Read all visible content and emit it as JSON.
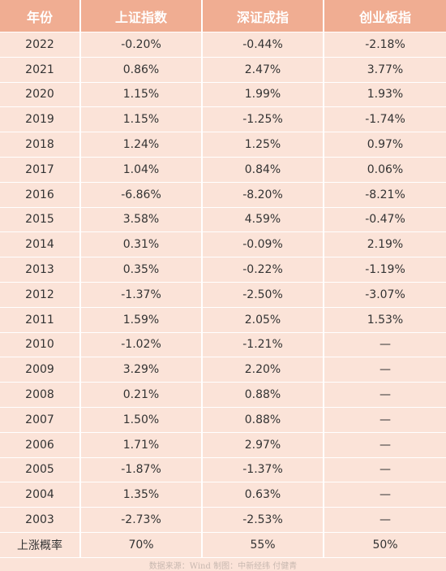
{
  "table": {
    "header": [
      "年份",
      "上证指数",
      "深证成指",
      "创业板指"
    ],
    "rows": [
      [
        "2022",
        "-0.20%",
        "-0.44%",
        "-2.18%"
      ],
      [
        "2021",
        "0.86%",
        "2.47%",
        "3.77%"
      ],
      [
        "2020",
        "1.15%",
        "1.99%",
        "1.93%"
      ],
      [
        "2019",
        "1.15%",
        "-1.25%",
        "-1.74%"
      ],
      [
        "2018",
        "1.24%",
        "1.25%",
        "0.97%"
      ],
      [
        "2017",
        "1.04%",
        "0.84%",
        "0.06%"
      ],
      [
        "2016",
        "-6.86%",
        "-8.20%",
        "-8.21%"
      ],
      [
        "2015",
        "3.58%",
        "4.59%",
        "-0.47%"
      ],
      [
        "2014",
        "0.31%",
        "-0.09%",
        "2.19%"
      ],
      [
        "2013",
        "0.35%",
        "-0.22%",
        "-1.19%"
      ],
      [
        "2012",
        "-1.37%",
        "-2.50%",
        "-3.07%"
      ],
      [
        "2011",
        "1.59%",
        "2.05%",
        "1.53%"
      ],
      [
        "2010",
        "-1.02%",
        "-1.21%",
        "—"
      ],
      [
        "2009",
        "3.29%",
        "2.20%",
        "—"
      ],
      [
        "2008",
        "0.21%",
        "0.88%",
        "—"
      ],
      [
        "2007",
        "1.50%",
        "0.88%",
        "—"
      ],
      [
        "2006",
        "1.71%",
        "2.97%",
        "—"
      ],
      [
        "2005",
        "-1.87%",
        "-1.37%",
        "—"
      ],
      [
        "2004",
        "1.35%",
        "0.63%",
        "—"
      ],
      [
        "2003",
        "-2.73%",
        "-2.53%",
        "—"
      ],
      [
        "上涨概率",
        "70%",
        "55%",
        "50%"
      ]
    ],
    "source": "数据来源：Wind 制图：中新经纬 付健青"
  }
}
